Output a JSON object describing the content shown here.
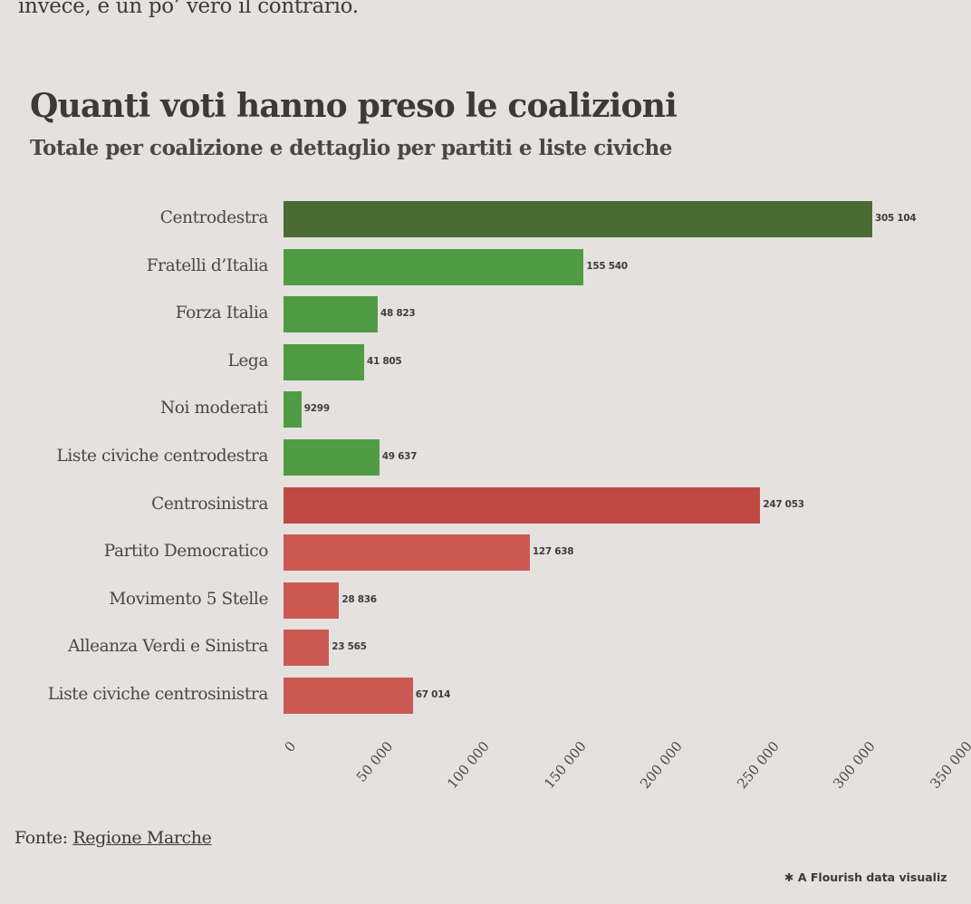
{
  "intro_text": "invece, è un po’ vero il contrario.",
  "chart_title": "Quanti voti hanno preso le coalizioni",
  "chart_subtitle": "Totale per coalizione e dettaglio per partiti e liste civiche",
  "source": {
    "prefix": "Fonte: ",
    "link_label": "Regione Marche"
  },
  "credit": {
    "icon": "flourish-asterisk-icon",
    "label": "A Flourish data visualiz"
  },
  "colors": {
    "centrodestra_total": "#4a6b33",
    "centrodestra_party": "#4f9c44",
    "centrosinistra_total": "#c04a43",
    "centrosinistra_party": "#cc5a54",
    "background": "#e4e1df"
  },
  "chart_data": {
    "type": "bar",
    "orientation": "horizontal",
    "title": "Quanti voti hanno preso le coalizioni",
    "subtitle": "Totale per coalizione e dettaglio per partiti e liste civiche",
    "xlabel": "",
    "ylabel": "",
    "xlim": [
      0,
      350000
    ],
    "x_ticks": [
      "0",
      "50 000",
      "100 000",
      "150 000",
      "200 000",
      "250 000",
      "300 000",
      "350 000"
    ],
    "grid": false,
    "legend": null,
    "categories": [
      "Centrodestra",
      "Fratelli d’Italia",
      "Forza Italia",
      "Lega",
      "Noi moderati",
      "Liste civiche centrodestra",
      "Centrosinistra",
      "Partito Democratico",
      "Movimento 5 Stelle",
      "Alleanza Verdi e Sinistra",
      "Liste civiche centrosinistra"
    ],
    "values": [
      305104,
      155540,
      48823,
      41805,
      9299,
      49637,
      247053,
      127638,
      28836,
      23565,
      67014
    ],
    "value_labels": [
      "305 104",
      "155 540",
      "48 823",
      "41 805",
      "9299",
      "49 637",
      "247 053",
      "127 638",
      "28 836",
      "23 565",
      "67 014"
    ],
    "bar_colors": [
      "#4a6b33",
      "#4f9c44",
      "#4f9c44",
      "#4f9c44",
      "#4f9c44",
      "#4f9c44",
      "#c04a43",
      "#cc5a54",
      "#cc5a54",
      "#cc5a54",
      "#cc5a54"
    ],
    "source": "Fonte: Regione Marche"
  }
}
